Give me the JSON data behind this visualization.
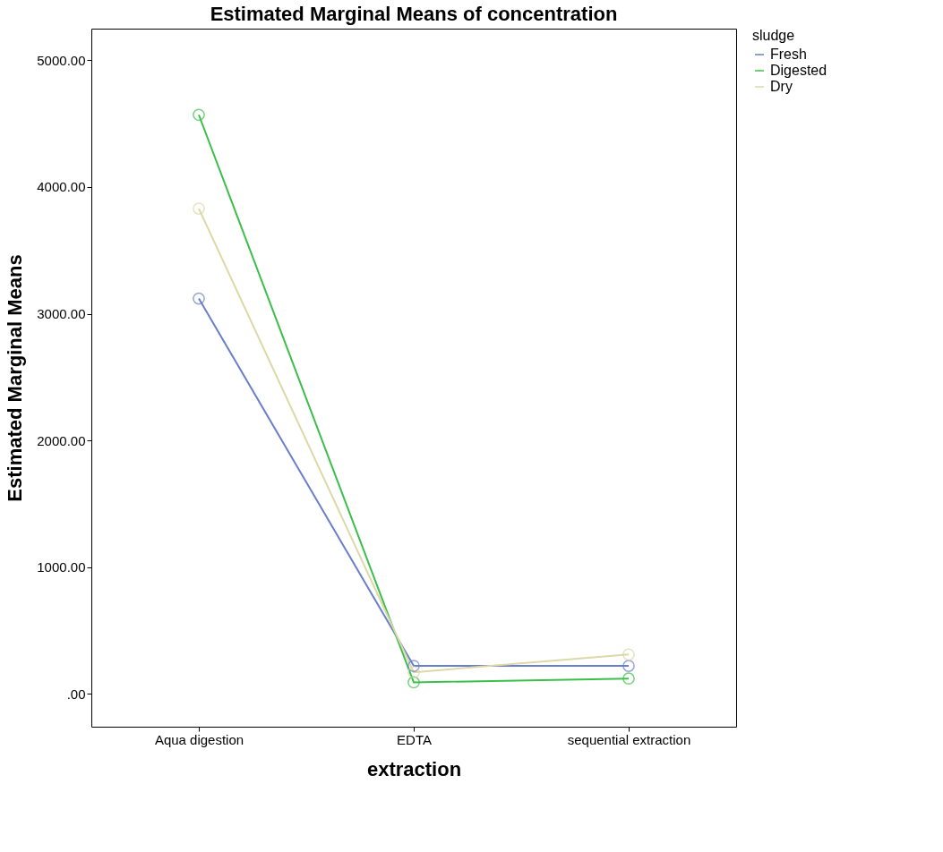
{
  "chart_data": {
    "type": "line",
    "title": "Estimated Marginal Means of concentration",
    "xlabel": "extraction",
    "ylabel": "Estimated Marginal Means",
    "legend_title": "sludge",
    "categories": [
      "Aqua digestion",
      "EDTA",
      "sequential extraction"
    ],
    "series": [
      {
        "name": "Fresh",
        "color": "#6a7fc9",
        "values": [
          3120,
          220,
          220
        ]
      },
      {
        "name": "Digested",
        "color": "#3cbf4a",
        "values": [
          4570,
          90,
          120
        ]
      },
      {
        "name": "Dry",
        "color": "#dcd8a8",
        "values": [
          3830,
          170,
          310
        ]
      }
    ],
    "ylim": [
      -260,
      5250
    ],
    "yticks": [
      {
        "value": 0,
        "label": ".00"
      },
      {
        "value": 1000,
        "label": "1000.00"
      },
      {
        "value": 2000,
        "label": "2000.00"
      },
      {
        "value": 3000,
        "label": "3000.00"
      },
      {
        "value": 4000,
        "label": "4000.00"
      },
      {
        "value": 5000,
        "label": "5000.00"
      }
    ],
    "marker": "circle",
    "line_style": "solid",
    "grid": false,
    "legend": "top right"
  }
}
